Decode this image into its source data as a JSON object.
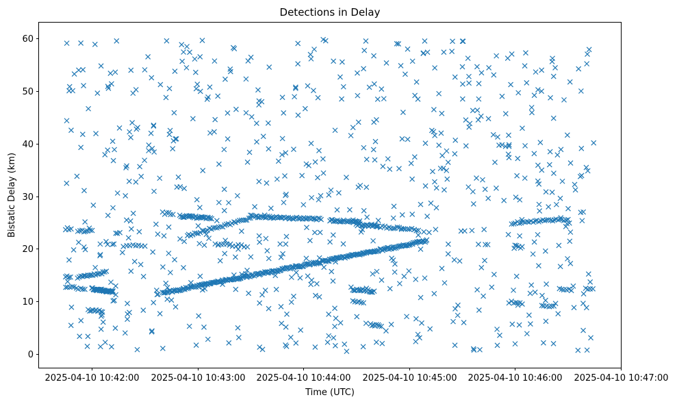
{
  "chart_data": {
    "type": "scatter",
    "title": "Detections in Delay",
    "xlabel": "Time (UTC)",
    "ylabel": "Bistatic Delay (km)",
    "marker": "x",
    "color": "#1f77b4",
    "grid": false,
    "legend": false,
    "x_format": "YYYY-MM-DD HH:MM:SS",
    "xlim": [
      "2025-04-10 10:41:30",
      "2025-04-10 10:47:00"
    ],
    "ylim": [
      -2.6,
      63
    ],
    "x_ticks": [
      "2025-04-10 10:42:00",
      "2025-04-10 10:43:00",
      "2025-04-10 10:44:00",
      "2025-04-10 10:45:00",
      "2025-04-10 10:46:00",
      "2025-04-10 10:47:00"
    ],
    "y_ticks": [
      0,
      10,
      20,
      30,
      40,
      50,
      60
    ],
    "tracks": [
      {
        "t_start": "2025-04-10 10:42:00",
        "t_end": "2025-04-10 10:42:12",
        "delay_start": 12.4,
        "delay_end": 11.8,
        "count": 40
      },
      {
        "t_start": "2025-04-10 10:41:45",
        "t_end": "2025-04-10 10:41:56",
        "delay_start": 12.8,
        "delay_end": 12.3,
        "count": 10
      },
      {
        "t_start": "2025-04-10 10:41:52",
        "t_end": "2025-04-10 10:42:08",
        "delay_start": 14.6,
        "delay_end": 15.6,
        "count": 20
      },
      {
        "t_start": "2025-04-10 10:41:45",
        "t_end": "2025-04-10 10:41:48",
        "delay_start": 14.7,
        "delay_end": 14.7,
        "count": 4
      },
      {
        "t_start": "2025-04-10 10:41:45",
        "t_end": "2025-04-10 10:41:48",
        "delay_start": 23.8,
        "delay_end": 23.8,
        "count": 4
      },
      {
        "t_start": "2025-04-10 10:41:52",
        "t_end": "2025-04-10 10:42:00",
        "delay_start": 23.5,
        "delay_end": 23.3,
        "count": 8
      },
      {
        "t_start": "2025-04-10 10:41:58",
        "t_end": "2025-04-10 10:42:06",
        "delay_start": 8.3,
        "delay_end": 8.1,
        "count": 10
      },
      {
        "t_start": "2025-04-10 10:42:18",
        "t_end": "2025-04-10 10:42:30",
        "delay_start": 20.6,
        "delay_end": 20.6,
        "count": 8
      },
      {
        "t_start": "2025-04-10 10:42:40",
        "t_end": "2025-04-10 10:45:10",
        "delay_start": 11.6,
        "delay_end": 21.5,
        "count": 260
      },
      {
        "t_start": "2025-04-10 10:42:40",
        "t_end": "2025-04-10 10:42:46",
        "delay_start": 26.8,
        "delay_end": 26.6,
        "count": 6
      },
      {
        "t_start": "2025-04-10 10:42:50",
        "t_end": "2025-04-10 10:43:08",
        "delay_start": 26.2,
        "delay_end": 25.8,
        "count": 30
      },
      {
        "t_start": "2025-04-10 10:42:54",
        "t_end": "2025-04-10 10:43:30",
        "delay_start": 22.5,
        "delay_end": 25.8,
        "count": 35
      },
      {
        "t_start": "2025-04-10 10:43:10",
        "t_end": "2025-04-10 10:43:28",
        "delay_start": 20.9,
        "delay_end": 20.5,
        "count": 12
      },
      {
        "t_start": "2025-04-10 10:43:30",
        "t_end": "2025-04-10 10:44:10",
        "delay_start": 26.2,
        "delay_end": 25.6,
        "count": 50
      },
      {
        "t_start": "2025-04-10 10:44:15",
        "t_end": "2025-04-10 10:44:32",
        "delay_start": 25.4,
        "delay_end": 25.1,
        "count": 25
      },
      {
        "t_start": "2025-04-10 10:44:30",
        "t_end": "2025-04-10 10:44:42",
        "delay_start": 24.6,
        "delay_end": 24.4,
        "count": 18
      },
      {
        "t_start": "2025-04-10 10:44:40",
        "t_end": "2025-04-10 10:45:05",
        "delay_start": 24.3,
        "delay_end": 23.6,
        "count": 22
      },
      {
        "t_start": "2025-04-10 10:44:28",
        "t_end": "2025-04-10 10:44:40",
        "delay_start": 12.3,
        "delay_end": 11.9,
        "count": 18
      },
      {
        "t_start": "2025-04-10 10:44:28",
        "t_end": "2025-04-10 10:44:34",
        "delay_start": 10.0,
        "delay_end": 9.8,
        "count": 6
      },
      {
        "t_start": "2025-04-10 10:44:38",
        "t_end": "2025-04-10 10:44:44",
        "delay_start": 5.6,
        "delay_end": 5.3,
        "count": 8
      },
      {
        "t_start": "2025-04-10 10:45:58",
        "t_end": "2025-04-10 10:46:30",
        "delay_start": 24.9,
        "delay_end": 25.6,
        "count": 30
      },
      {
        "t_start": "2025-04-10 10:46:00",
        "t_end": "2025-04-10 10:46:04",
        "delay_start": 20.5,
        "delay_end": 20.3,
        "count": 5
      },
      {
        "t_start": "2025-04-10 10:45:58",
        "t_end": "2025-04-10 10:46:04",
        "delay_start": 9.9,
        "delay_end": 9.6,
        "count": 6
      },
      {
        "t_start": "2025-04-10 10:46:15",
        "t_end": "2025-04-10 10:46:22",
        "delay_start": 9.3,
        "delay_end": 9.0,
        "count": 6
      },
      {
        "t_start": "2025-04-10 10:46:25",
        "t_end": "2025-04-10 10:46:32",
        "delay_start": 12.4,
        "delay_end": 12.1,
        "count": 6
      },
      {
        "t_start": "2025-04-10 10:46:40",
        "t_end": "2025-04-10 10:46:44",
        "delay_start": 12.3,
        "delay_end": 12.2,
        "count": 4
      }
    ],
    "scatter": {
      "t_start": "2025-04-10 10:41:45",
      "t_end": "2025-04-10 10:46:45",
      "delay_min": 0.5,
      "delay_max": 59.8,
      "count": 700
    }
  }
}
